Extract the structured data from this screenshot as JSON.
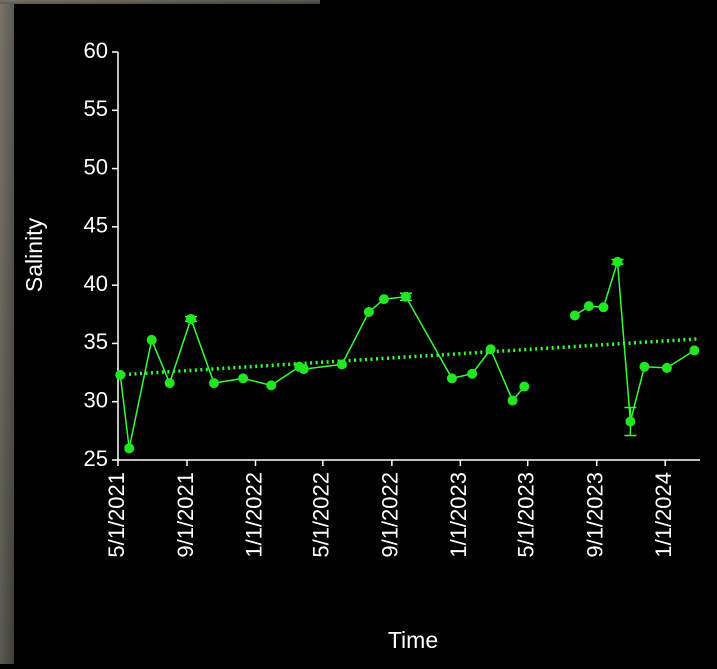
{
  "chart_data": {
    "type": "line",
    "x_label": "Time",
    "y_label": "Salinity",
    "series": [
      {
        "name": "Salinity",
        "color": "#33ff33",
        "marker_color": "#22e622",
        "x": [
          "5/5/2021",
          "5/21/2021",
          "6/30/2021",
          "8/1/2021",
          "9/8/2021",
          "10/19/2021",
          "12/10/2021",
          "1/29/2022",
          "3/20/2022",
          "3/28/2022",
          "6/4/2022",
          "7/22/2022",
          "8/18/2022",
          "9/26/2022",
          "12/17/2022",
          "1/22/2023",
          "2/24/2023",
          "4/4/2023",
          "4/25/2023",
          null,
          "7/24/2023",
          "8/18/2023",
          "9/13/2023",
          "10/8/2023",
          "10/31/2023",
          "11/25/2023",
          "1/4/2024",
          "2/22/2024"
        ],
        "values": [
          32.3,
          26.0,
          35.3,
          31.6,
          37.1,
          31.6,
          32.0,
          31.4,
          33.0,
          32.8,
          33.2,
          37.7,
          38.8,
          39.0,
          32.0,
          32.4,
          34.5,
          30.1,
          31.3,
          null,
          37.4,
          38.2,
          38.1,
          42.0,
          28.3,
          33.0,
          32.9,
          34.4
        ],
        "errors": [
          null,
          null,
          null,
          null,
          0.2,
          null,
          null,
          null,
          null,
          null,
          null,
          null,
          null,
          0.3,
          null,
          null,
          null,
          null,
          null,
          null,
          null,
          null,
          null,
          0.2,
          1.2,
          null,
          null,
          null
        ]
      }
    ],
    "trendline": {
      "color": "#33ff33",
      "values": [
        32.3,
        35.4
      ]
    },
    "xlim": [
      "5/1/2021",
      "3/3/2024"
    ],
    "xticks": [
      "5/1/2021",
      "9/1/2021",
      "1/1/2022",
      "5/1/2022",
      "9/1/2022",
      "1/1/2023",
      "5/1/2023",
      "9/1/2023",
      "1/1/2024"
    ],
    "ylim": [
      25,
      60
    ],
    "yticks": [
      25,
      30,
      35,
      40,
      45,
      50,
      55,
      60
    ],
    "grid": false
  }
}
